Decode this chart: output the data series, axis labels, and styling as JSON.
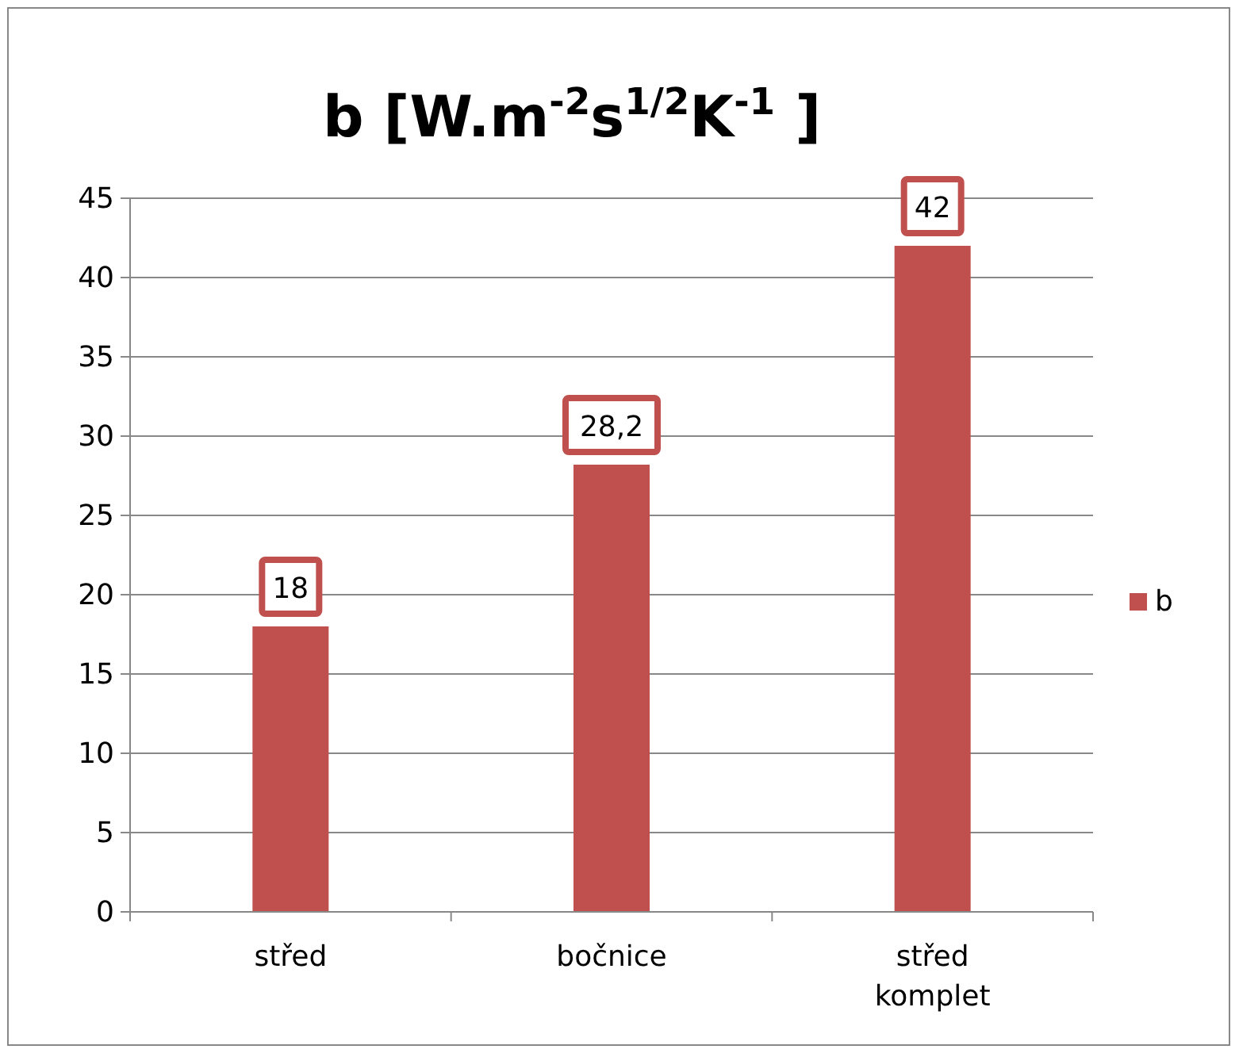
{
  "chart_data": {
    "type": "bar",
    "title": "b [W.m$^{-2}$s$^{1/2}$K$^{-1}$ ]",
    "categories": [
      "střed",
      "bočnice",
      "střed komplet"
    ],
    "series": [
      {
        "name": "b",
        "color": "#c0504d",
        "values": [
          18,
          28.2,
          42
        ],
        "value_labels": [
          "18",
          "28,2",
          "42"
        ]
      }
    ],
    "ylim": [
      0,
      45
    ],
    "yticks": [
      0,
      5,
      10,
      15,
      20,
      25,
      30,
      35,
      40,
      45
    ],
    "grid": "y",
    "legend": "right"
  }
}
